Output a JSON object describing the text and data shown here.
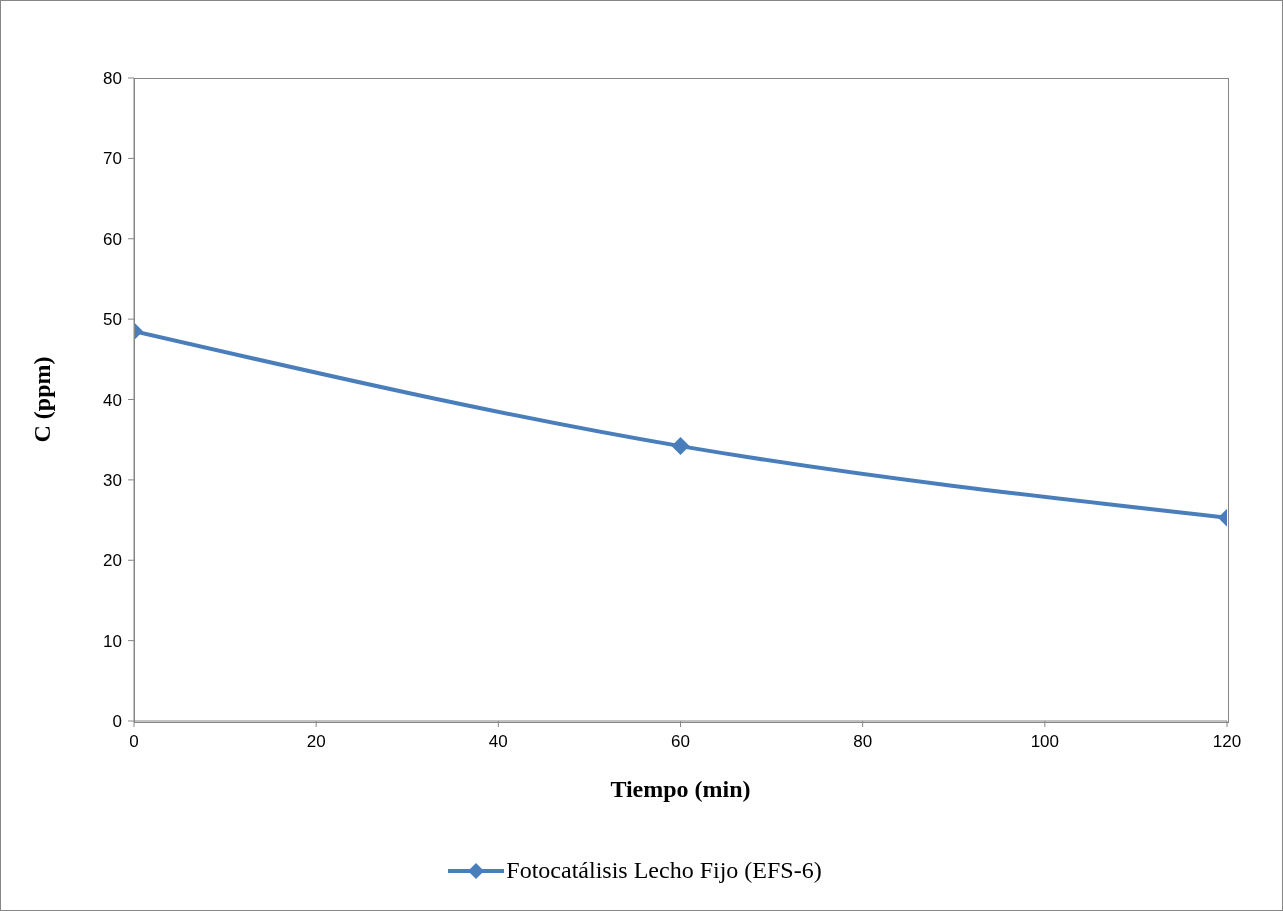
{
  "chart_data": {
    "type": "line",
    "xlabel": "Tiempo (min)",
    "ylabel": "C (ppm)",
    "x": [
      0,
      60,
      120
    ],
    "series": [
      {
        "name": "Fotocatálisis Lecho Fijo (EFS-6)",
        "color": "#4a7ebb",
        "values": [
          48.5,
          34.2,
          25.3
        ]
      }
    ],
    "xlim": [
      0,
      120
    ],
    "xticks": [
      0,
      20,
      40,
      60,
      80,
      100,
      120
    ],
    "ylim": [
      0,
      80
    ],
    "yticks": [
      0,
      10,
      20,
      30,
      40,
      50,
      60,
      70,
      80
    ],
    "marker": "diamond",
    "legend": "bottom"
  }
}
